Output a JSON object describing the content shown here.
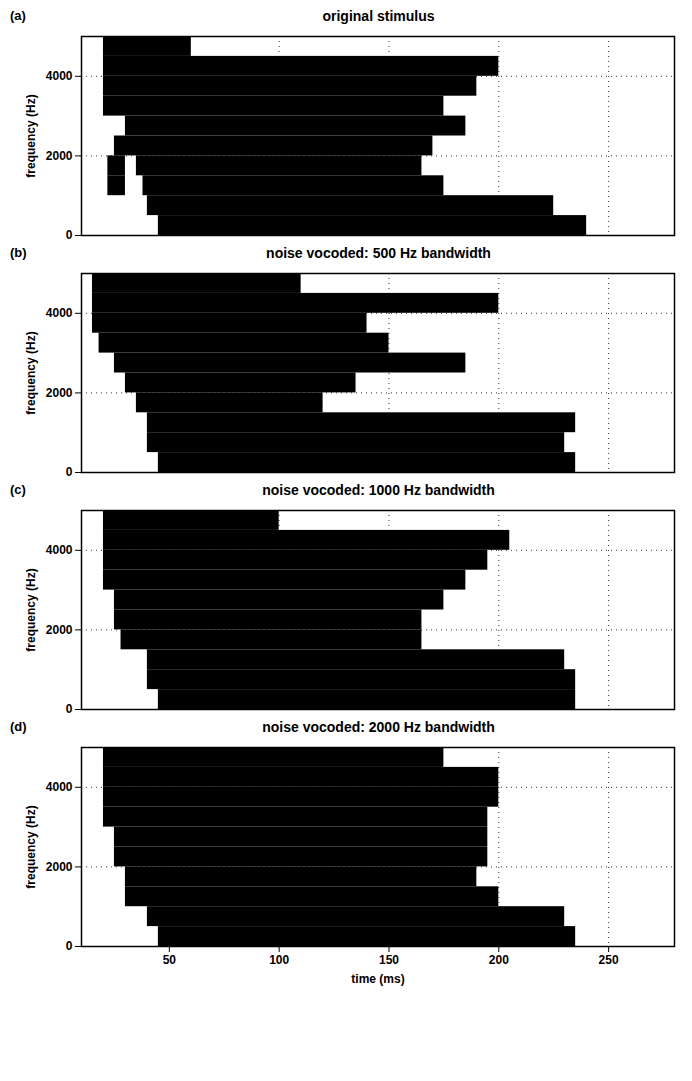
{
  "chart_data": [
    {
      "type": "spectrogram",
      "label": "(a)",
      "title": "original stimulus",
      "ylabel": "frequency (Hz)",
      "xlim": [
        10,
        280
      ],
      "ylim": [
        0,
        5000
      ],
      "xticks": [
        50,
        100,
        150,
        200,
        250
      ],
      "yticks": [
        0,
        2000,
        4000
      ],
      "grid": true,
      "tick_labels": "y",
      "color": "#000000",
      "segments": [
        {
          "start": 20,
          "end": 60,
          "low": 4500,
          "high": 5000
        },
        {
          "start": 20,
          "end": 200,
          "low": 4000,
          "high": 4500
        },
        {
          "start": 20,
          "end": 190,
          "low": 3500,
          "high": 4000
        },
        {
          "start": 20,
          "end": 175,
          "low": 3000,
          "high": 3500
        },
        {
          "start": 30,
          "end": 185,
          "low": 2500,
          "high": 3000
        },
        {
          "start": 25,
          "end": 170,
          "low": 2000,
          "high": 2500
        },
        {
          "start": 22,
          "end": 30,
          "low": 1500,
          "high": 2000
        },
        {
          "start": 35,
          "end": 165,
          "low": 1500,
          "high": 2000
        },
        {
          "start": 22,
          "end": 30,
          "low": 1000,
          "high": 1500
        },
        {
          "start": 38,
          "end": 175,
          "low": 1000,
          "high": 1500
        },
        {
          "start": 40,
          "end": 225,
          "low": 500,
          "high": 1000
        },
        {
          "start": 45,
          "end": 240,
          "low": 0,
          "high": 500
        }
      ]
    },
    {
      "type": "spectrogram",
      "label": "(b)",
      "title": "noise vocoded: 500 Hz bandwidth",
      "ylabel": "frequency (Hz)",
      "xlim": [
        10,
        280
      ],
      "ylim": [
        0,
        5000
      ],
      "xticks": [
        50,
        100,
        150,
        200,
        250
      ],
      "yticks": [
        0,
        2000,
        4000
      ],
      "grid": true,
      "tick_labels": "y",
      "color": "#000000",
      "segments": [
        {
          "start": 15,
          "end": 110,
          "low": 4500,
          "high": 5000
        },
        {
          "start": 15,
          "end": 200,
          "low": 4000,
          "high": 4500
        },
        {
          "start": 15,
          "end": 140,
          "low": 3500,
          "high": 4000
        },
        {
          "start": 18,
          "end": 150,
          "low": 3000,
          "high": 3500
        },
        {
          "start": 25,
          "end": 185,
          "low": 2500,
          "high": 3000
        },
        {
          "start": 30,
          "end": 135,
          "low": 2000,
          "high": 2500
        },
        {
          "start": 35,
          "end": 120,
          "low": 1500,
          "high": 2000
        },
        {
          "start": 40,
          "end": 235,
          "low": 1000,
          "high": 1500
        },
        {
          "start": 40,
          "end": 230,
          "low": 500,
          "high": 1000
        },
        {
          "start": 45,
          "end": 235,
          "low": 0,
          "high": 500
        }
      ]
    },
    {
      "type": "spectrogram",
      "label": "(c)",
      "title": "noise vocoded: 1000 Hz bandwidth",
      "ylabel": "frequency (Hz)",
      "xlim": [
        10,
        280
      ],
      "ylim": [
        0,
        5000
      ],
      "xticks": [
        50,
        100,
        150,
        200,
        250
      ],
      "yticks": [
        0,
        2000,
        4000
      ],
      "grid": true,
      "tick_labels": "y",
      "color": "#000000",
      "segments": [
        {
          "start": 20,
          "end": 100,
          "low": 4500,
          "high": 5000
        },
        {
          "start": 20,
          "end": 205,
          "low": 4000,
          "high": 4500
        },
        {
          "start": 20,
          "end": 195,
          "low": 3500,
          "high": 4000
        },
        {
          "start": 20,
          "end": 185,
          "low": 3000,
          "high": 3500
        },
        {
          "start": 25,
          "end": 175,
          "low": 2500,
          "high": 3000
        },
        {
          "start": 25,
          "end": 165,
          "low": 2000,
          "high": 2500
        },
        {
          "start": 28,
          "end": 165,
          "low": 1500,
          "high": 2000
        },
        {
          "start": 40,
          "end": 230,
          "low": 1000,
          "high": 1500
        },
        {
          "start": 40,
          "end": 235,
          "low": 500,
          "high": 1000
        },
        {
          "start": 45,
          "end": 235,
          "low": 0,
          "high": 500
        }
      ]
    },
    {
      "type": "spectrogram",
      "label": "(d)",
      "title": "noise vocoded: 2000 Hz bandwidth",
      "xlabel": "time (ms)",
      "ylabel": "frequency (Hz)",
      "xlim": [
        10,
        280
      ],
      "ylim": [
        0,
        5000
      ],
      "xticks": [
        50,
        100,
        150,
        200,
        250
      ],
      "yticks": [
        0,
        2000,
        4000
      ],
      "grid": true,
      "color": "#000000",
      "segments": [
        {
          "start": 20,
          "end": 175,
          "low": 4500,
          "high": 5000
        },
        {
          "start": 20,
          "end": 200,
          "low": 4000,
          "high": 4500
        },
        {
          "start": 20,
          "end": 200,
          "low": 3500,
          "high": 4000
        },
        {
          "start": 20,
          "end": 195,
          "low": 3000,
          "high": 3500
        },
        {
          "start": 25,
          "end": 195,
          "low": 2500,
          "high": 3000
        },
        {
          "start": 25,
          "end": 195,
          "low": 2000,
          "high": 2500
        },
        {
          "start": 30,
          "end": 190,
          "low": 1500,
          "high": 2000
        },
        {
          "start": 30,
          "end": 200,
          "low": 1000,
          "high": 1500
        },
        {
          "start": 40,
          "end": 230,
          "low": 500,
          "high": 1000
        },
        {
          "start": 45,
          "end": 235,
          "low": 0,
          "high": 500
        }
      ]
    }
  ]
}
